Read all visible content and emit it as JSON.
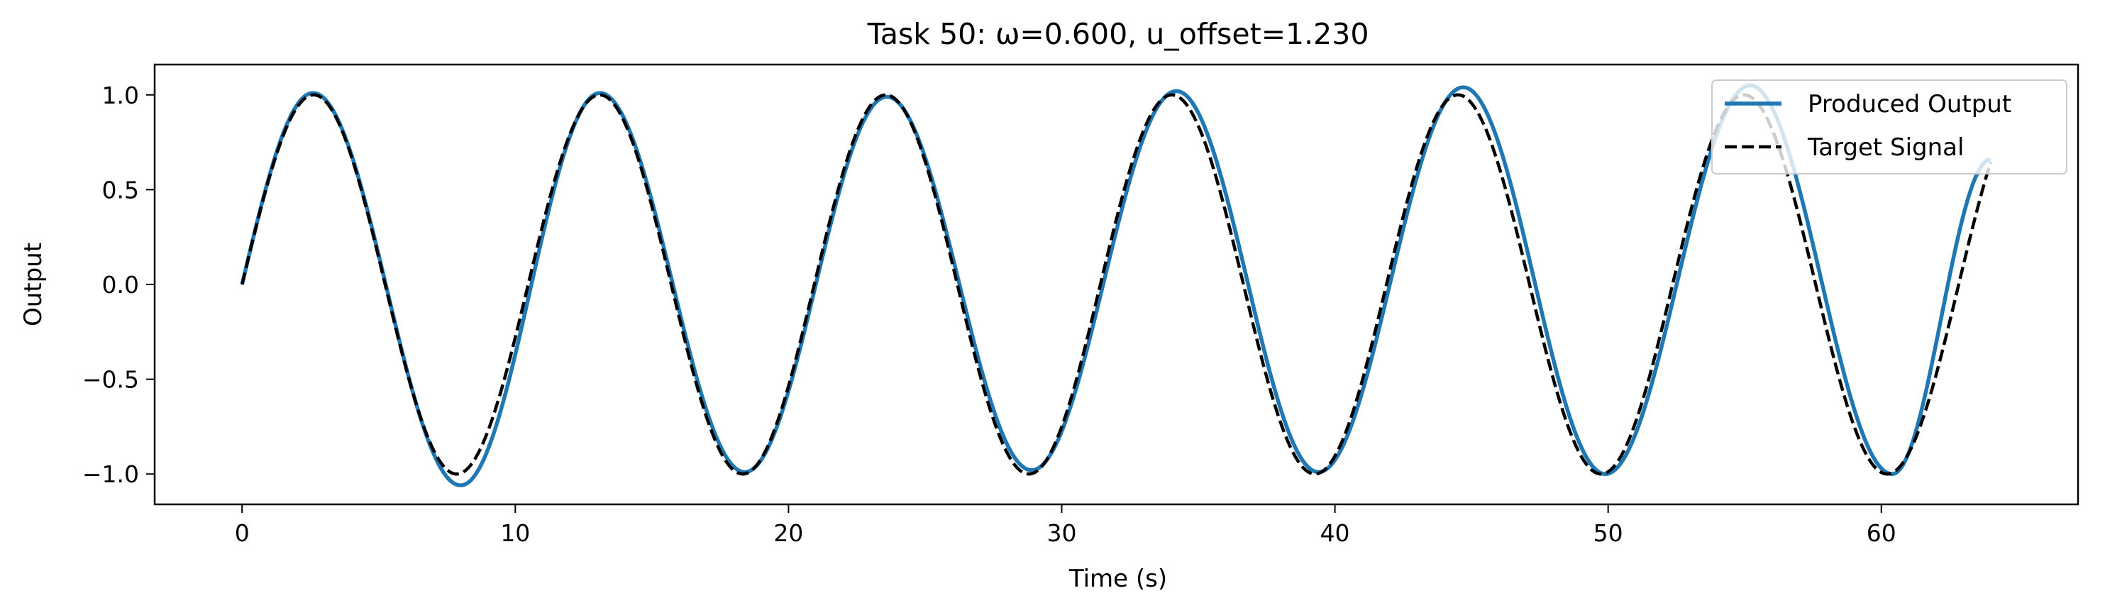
{
  "chart_data": {
    "type": "line",
    "title": "Task 50: ω=0.600, u_offset=1.230",
    "xlabel": "Time (s)",
    "ylabel": "Output",
    "xlim": [
      -3.2,
      67.2
    ],
    "ylim": [
      -1.16,
      1.16
    ],
    "xticks": [
      0,
      10,
      20,
      30,
      40,
      50,
      60
    ],
    "xtick_labels": [
      "0",
      "10",
      "20",
      "30",
      "40",
      "50",
      "60"
    ],
    "yticks": [
      -1.0,
      -0.5,
      0.0,
      0.5,
      1.0
    ],
    "ytick_labels": [
      "−1.0",
      "−0.5",
      "0.0",
      "0.5",
      "1.0"
    ],
    "grid": false,
    "legend_position": "top-right",
    "x_range": [
      0,
      64
    ],
    "omega": 0.6,
    "series": [
      {
        "name": "Produced Output",
        "color": "#1f77b4",
        "style": "solid",
        "peaks": [
          [
            2.6,
            1.01
          ],
          [
            8.0,
            -1.06
          ],
          [
            13.1,
            1.01
          ],
          [
            18.4,
            -0.99
          ],
          [
            23.6,
            0.99
          ],
          [
            28.9,
            -0.98
          ],
          [
            34.2,
            1.02
          ],
          [
            39.4,
            -0.99
          ],
          [
            44.7,
            1.04
          ],
          [
            49.9,
            -1.0
          ],
          [
            55.2,
            1.05
          ],
          [
            60.4,
            -1.0
          ]
        ],
        "end": [
          64.0,
          0.66
        ]
      },
      {
        "name": "Target Signal",
        "color": "#000000",
        "style": "dashed",
        "amplitude": 1.0,
        "function": "sin(ω·t)"
      }
    ]
  }
}
